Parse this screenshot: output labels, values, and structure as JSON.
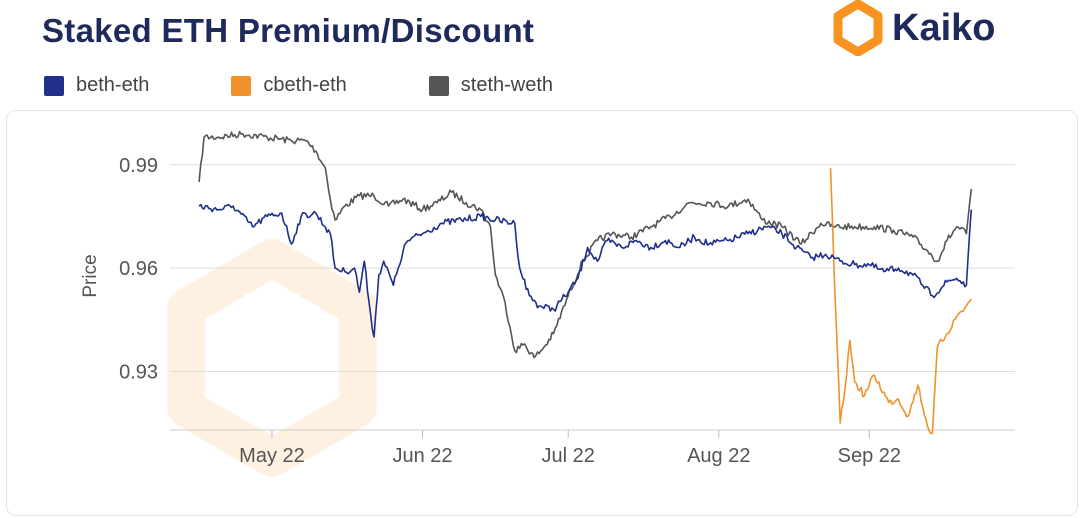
{
  "header": {
    "title": "Staked ETH Premium/Discount",
    "brand": "Kaiko"
  },
  "colors": {
    "title": "#1f2a5c",
    "brand_orange": "#f7931e",
    "beth_eth": "#1f2f8a",
    "cbeth_eth": "#f0922b",
    "steth_weth": "#555555",
    "grid": "#dddddd"
  },
  "chart_data": {
    "type": "line",
    "title": "Staked ETH Premium/Discount",
    "ylabel": "Price",
    "xlabel": "",
    "ylim": [
      0.913,
      1.003
    ],
    "yticks": [
      0.93,
      0.96,
      0.99
    ],
    "ytick_labels": [
      "0.93",
      "0.96",
      "0.99"
    ],
    "xlim": [
      "2022-04-10",
      "2022-10-01"
    ],
    "xticks": [
      "2022-05-01",
      "2022-06-01",
      "2022-07-01",
      "2022-08-01",
      "2022-09-01"
    ],
    "xtick_labels": [
      "May 22",
      "Jun 22",
      "Jul 22",
      "Aug 22",
      "Sep 22"
    ],
    "grid": "horizontal",
    "legend_position": "top-left",
    "series": [
      {
        "name": "beth-eth",
        "color": "#1f2f8a",
        "points": [
          [
            "2022-04-16",
            0.978
          ],
          [
            "2022-04-20",
            0.977
          ],
          [
            "2022-04-23",
            0.978
          ],
          [
            "2022-04-27",
            0.972
          ],
          [
            "2022-04-30",
            0.975
          ],
          [
            "2022-05-03",
            0.976
          ],
          [
            "2022-05-05",
            0.967
          ],
          [
            "2022-05-07",
            0.975
          ],
          [
            "2022-05-10",
            0.976
          ],
          [
            "2022-05-13",
            0.97
          ],
          [
            "2022-05-14",
            0.96
          ],
          [
            "2022-05-16",
            0.959
          ],
          [
            "2022-05-18",
            0.96
          ],
          [
            "2022-05-19",
            0.953
          ],
          [
            "2022-05-20",
            0.962
          ],
          [
            "2022-05-21",
            0.95
          ],
          [
            "2022-05-22",
            0.94
          ],
          [
            "2022-05-23",
            0.958
          ],
          [
            "2022-05-24",
            0.962
          ],
          [
            "2022-05-26",
            0.955
          ],
          [
            "2022-05-27",
            0.96
          ],
          [
            "2022-05-28",
            0.965
          ],
          [
            "2022-05-29",
            0.968
          ],
          [
            "2022-06-01",
            0.97
          ],
          [
            "2022-06-05",
            0.973
          ],
          [
            "2022-06-09",
            0.974
          ],
          [
            "2022-06-13",
            0.975
          ],
          [
            "2022-06-16",
            0.974
          ],
          [
            "2022-06-20",
            0.973
          ],
          [
            "2022-06-21",
            0.96
          ],
          [
            "2022-06-23",
            0.952
          ],
          [
            "2022-06-25",
            0.949
          ],
          [
            "2022-06-28",
            0.948
          ],
          [
            "2022-07-01",
            0.953
          ],
          [
            "2022-07-03",
            0.957
          ],
          [
            "2022-07-05",
            0.966
          ],
          [
            "2022-07-07",
            0.962
          ],
          [
            "2022-07-09",
            0.968
          ],
          [
            "2022-07-12",
            0.966
          ],
          [
            "2022-07-15",
            0.968
          ],
          [
            "2022-07-18",
            0.966
          ],
          [
            "2022-07-21",
            0.968
          ],
          [
            "2022-07-24",
            0.966
          ],
          [
            "2022-07-27",
            0.969
          ],
          [
            "2022-07-30",
            0.967
          ],
          [
            "2022-08-03",
            0.968
          ],
          [
            "2022-08-07",
            0.97
          ],
          [
            "2022-08-11",
            0.972
          ],
          [
            "2022-08-14",
            0.97
          ],
          [
            "2022-08-17",
            0.966
          ],
          [
            "2022-08-20",
            0.963
          ],
          [
            "2022-08-23",
            0.964
          ],
          [
            "2022-08-26",
            0.962
          ],
          [
            "2022-08-29",
            0.961
          ],
          [
            "2022-09-01",
            0.961
          ],
          [
            "2022-09-04",
            0.959
          ],
          [
            "2022-09-07",
            0.96
          ],
          [
            "2022-09-10",
            0.958
          ],
          [
            "2022-09-12",
            0.955
          ],
          [
            "2022-09-14",
            0.952
          ],
          [
            "2022-09-17",
            0.956
          ],
          [
            "2022-09-19",
            0.957
          ],
          [
            "2022-09-21",
            0.955
          ],
          [
            "2022-09-22",
            0.977
          ]
        ]
      },
      {
        "name": "cbeth-eth",
        "color": "#f0922b",
        "points": [
          [
            "2022-08-24",
            0.989
          ],
          [
            "2022-08-25",
            0.95
          ],
          [
            "2022-08-26",
            0.915
          ],
          [
            "2022-08-27",
            0.925
          ],
          [
            "2022-08-28",
            0.939
          ],
          [
            "2022-08-29",
            0.927
          ],
          [
            "2022-08-31",
            0.923
          ],
          [
            "2022-09-02",
            0.929
          ],
          [
            "2022-09-05",
            0.921
          ],
          [
            "2022-09-07",
            0.922
          ],
          [
            "2022-09-09",
            0.917
          ],
          [
            "2022-09-11",
            0.926
          ],
          [
            "2022-09-13",
            0.914
          ],
          [
            "2022-09-14",
            0.912
          ],
          [
            "2022-09-15",
            0.937
          ],
          [
            "2022-09-17",
            0.941
          ],
          [
            "2022-09-19",
            0.946
          ],
          [
            "2022-09-21",
            0.949
          ],
          [
            "2022-09-22",
            0.951
          ]
        ]
      },
      {
        "name": "steth-weth",
        "color": "#555555",
        "points": [
          [
            "2022-04-16",
            0.985
          ],
          [
            "2022-04-17",
            0.998
          ],
          [
            "2022-04-20",
            0.998
          ],
          [
            "2022-04-25",
            0.999
          ],
          [
            "2022-04-30",
            0.998
          ],
          [
            "2022-05-05",
            0.997
          ],
          [
            "2022-05-08",
            0.997
          ],
          [
            "2022-05-10",
            0.994
          ],
          [
            "2022-05-12",
            0.989
          ],
          [
            "2022-05-13",
            0.98
          ],
          [
            "2022-05-14",
            0.974
          ],
          [
            "2022-05-16",
            0.978
          ],
          [
            "2022-05-19",
            0.981
          ],
          [
            "2022-05-22",
            0.981
          ],
          [
            "2022-05-25",
            0.978
          ],
          [
            "2022-05-28",
            0.98
          ],
          [
            "2022-06-01",
            0.977
          ],
          [
            "2022-06-04",
            0.979
          ],
          [
            "2022-06-07",
            0.982
          ],
          [
            "2022-06-10",
            0.979
          ],
          [
            "2022-06-13",
            0.977
          ],
          [
            "2022-06-15",
            0.972
          ],
          [
            "2022-06-16",
            0.958
          ],
          [
            "2022-06-18",
            0.95
          ],
          [
            "2022-06-19",
            0.943
          ],
          [
            "2022-06-20",
            0.936
          ],
          [
            "2022-06-22",
            0.938
          ],
          [
            "2022-06-24",
            0.934
          ],
          [
            "2022-06-26",
            0.937
          ],
          [
            "2022-06-28",
            0.941
          ],
          [
            "2022-07-01",
            0.952
          ],
          [
            "2022-07-04",
            0.962
          ],
          [
            "2022-07-07",
            0.968
          ],
          [
            "2022-07-10",
            0.97
          ],
          [
            "2022-07-14",
            0.969
          ],
          [
            "2022-07-18",
            0.972
          ],
          [
            "2022-07-22",
            0.975
          ],
          [
            "2022-07-26",
            0.979
          ],
          [
            "2022-07-30",
            0.979
          ],
          [
            "2022-08-03",
            0.978
          ],
          [
            "2022-08-07",
            0.98
          ],
          [
            "2022-08-10",
            0.974
          ],
          [
            "2022-08-14",
            0.972
          ],
          [
            "2022-08-18",
            0.967
          ],
          [
            "2022-08-22",
            0.973
          ],
          [
            "2022-08-25",
            0.972
          ],
          [
            "2022-08-29",
            0.972
          ],
          [
            "2022-09-02",
            0.972
          ],
          [
            "2022-09-06",
            0.971
          ],
          [
            "2022-09-10",
            0.969
          ],
          [
            "2022-09-13",
            0.965
          ],
          [
            "2022-09-15",
            0.962
          ],
          [
            "2022-09-17",
            0.968
          ],
          [
            "2022-09-19",
            0.972
          ],
          [
            "2022-09-21",
            0.97
          ],
          [
            "2022-09-22",
            0.983
          ]
        ]
      }
    ]
  }
}
